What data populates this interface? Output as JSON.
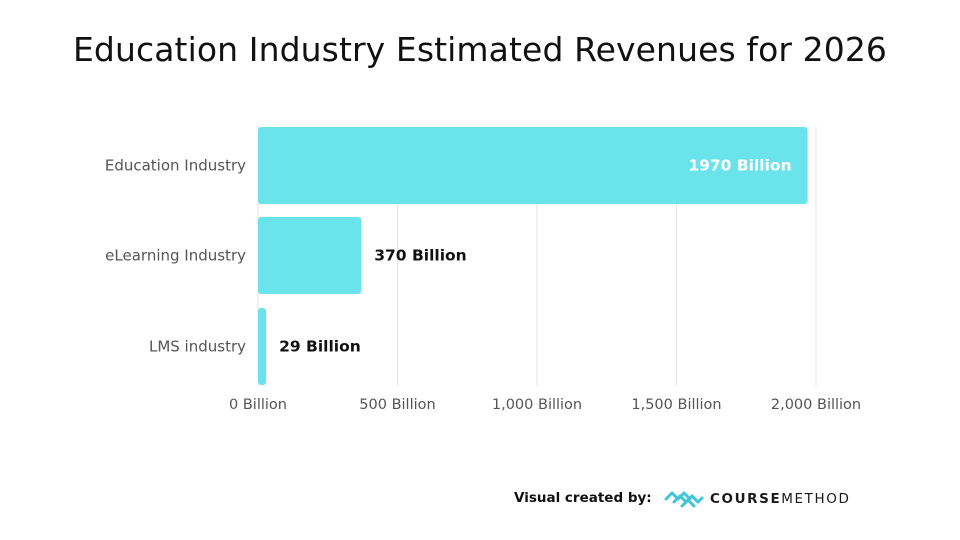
{
  "chart_data": {
    "type": "bar",
    "orientation": "horizontal",
    "title": "Education Industry Estimated Revenues for 2026",
    "categories": [
      "Education Industry",
      "eLearning Industry",
      "LMS industry"
    ],
    "values": [
      1970,
      370,
      29
    ],
    "value_labels": [
      "1970 Billion",
      "370 Billion",
      "29 Billion"
    ],
    "unit": "Billion",
    "xlim": [
      0,
      2000
    ],
    "xticks": [
      0,
      500,
      1000,
      1500,
      2000
    ],
    "xtick_labels": [
      "0 Billion",
      "500 Billion",
      "1,000 Billion",
      "1,500 Billion",
      "2,000 Billion"
    ],
    "grid": "vertical",
    "bar_color": "#6ae4ea",
    "inside_label_color": "#ffffff",
    "outside_label_color": "#111111"
  },
  "footer": {
    "credit_label": "Visual created by:",
    "brand_part1": "COURSE",
    "brand_part2": "METHOD",
    "logo_icon": "coursemethod-logo-icon",
    "logo_color": "#3fc4d8"
  }
}
